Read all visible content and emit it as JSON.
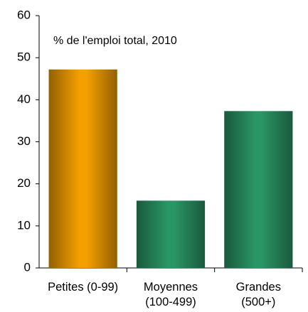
{
  "chart_data": {
    "type": "bar",
    "annotation": "% de l'emploi total, 2010",
    "categories": [
      "Petites (0-99)",
      "Moyennes (100-499)",
      "Grandes (500+)"
    ],
    "values": [
      47.2,
      16,
      37.3
    ],
    "colors": [
      "#f5a000",
      "#2a9565",
      "#2a9565"
    ],
    "ylim": [
      0,
      60
    ],
    "yticks": [
      0,
      10,
      20,
      30,
      40,
      50,
      60
    ],
    "grid": false
  }
}
